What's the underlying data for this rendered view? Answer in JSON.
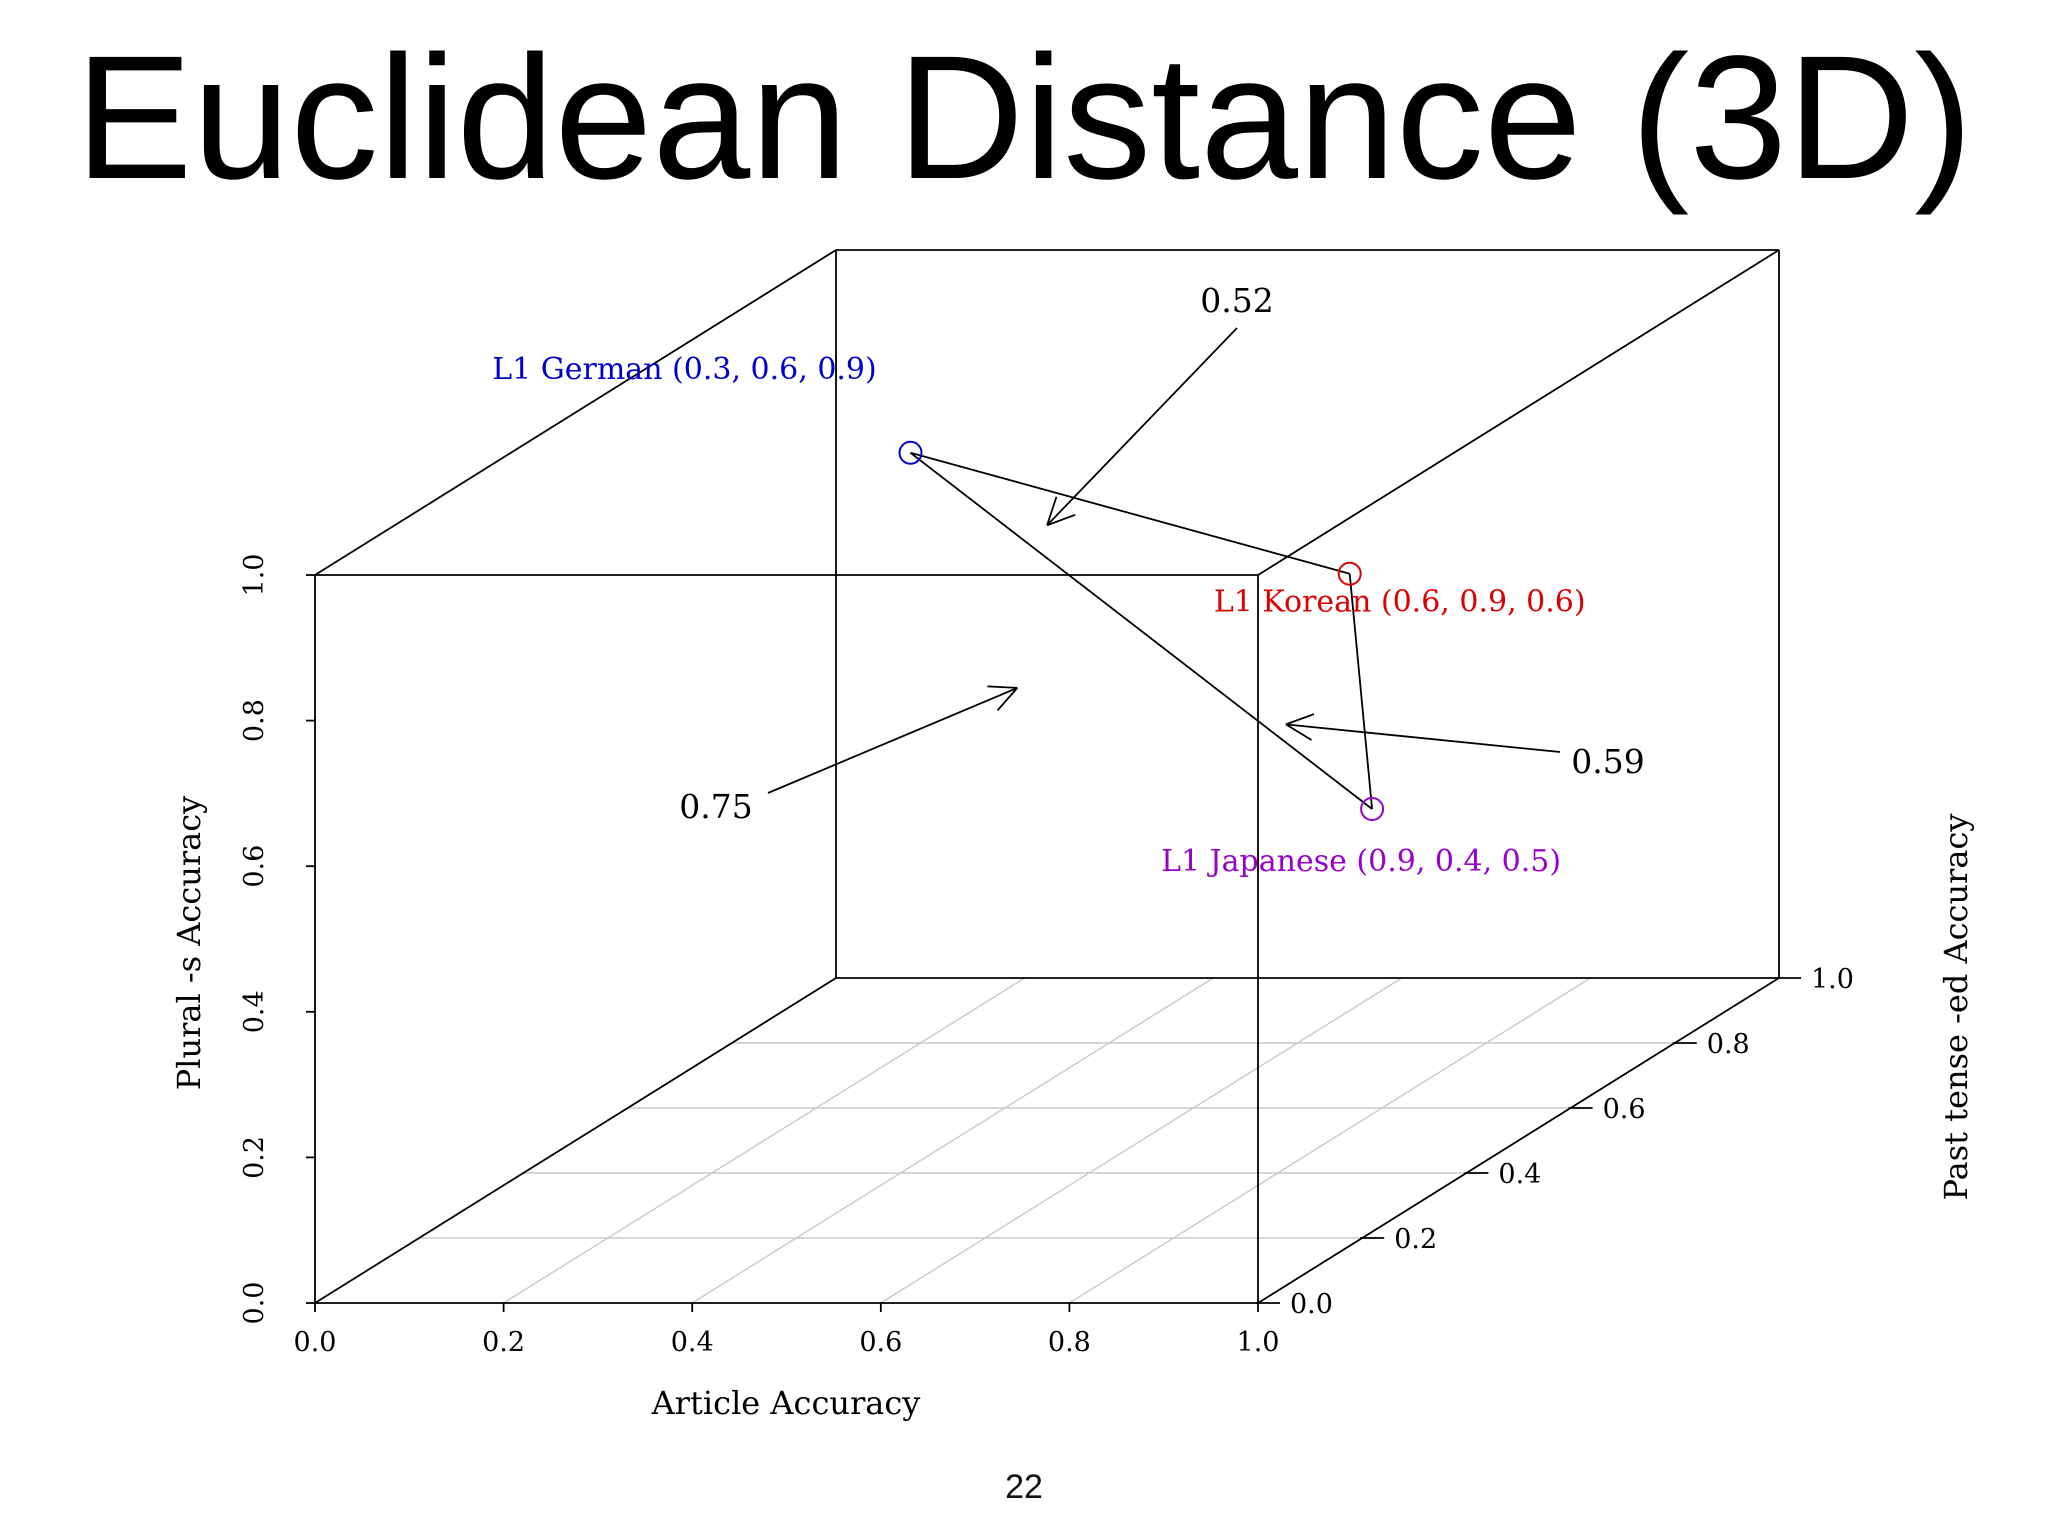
{
  "slide": {
    "title": "Euclidean Distance (3D)",
    "page_number": "22"
  },
  "chart_data": {
    "type": "scatter",
    "projection": "3d",
    "x_axis": {
      "label": "Article Accuracy",
      "range": [
        0,
        1
      ],
      "ticks": [
        "0.0",
        "0.2",
        "0.4",
        "0.6",
        "0.8",
        "1.0"
      ]
    },
    "y_axis": {
      "label": "Past tense -ed Accuracy",
      "range": [
        0,
        1
      ],
      "ticks": [
        "0.0",
        "0.2",
        "0.4",
        "0.6",
        "0.8",
        "1.0"
      ]
    },
    "z_axis": {
      "label": "Plural -s Accuracy",
      "range": [
        0,
        1
      ],
      "ticks": [
        "0.0",
        "0.2",
        "0.4",
        "0.6",
        "0.8",
        "1.0"
      ]
    },
    "floor_grid": true,
    "points": [
      {
        "label": "L1 German (0.3, 0.6, 0.9)",
        "x": 0.3,
        "y": 0.6,
        "z": 0.9,
        "color": "#0000cc"
      },
      {
        "label": "L1 Korean (0.6, 0.9, 0.6)",
        "x": 0.6,
        "y": 0.9,
        "z": 0.6,
        "color": "#dd0000"
      },
      {
        "label": "L1 Japanese (0.9, 0.4, 0.5)",
        "x": 0.9,
        "y": 0.4,
        "z": 0.5,
        "color": "#9900cc"
      }
    ],
    "distances": [
      {
        "from": "L1 German",
        "to": "L1 Korean",
        "label": "0.52"
      },
      {
        "from": "L1 Korean",
        "to": "L1 Japanese",
        "label": "0.59"
      },
      {
        "from": "L1 German",
        "to": "L1 Japanese",
        "label": "0.75"
      }
    ]
  }
}
